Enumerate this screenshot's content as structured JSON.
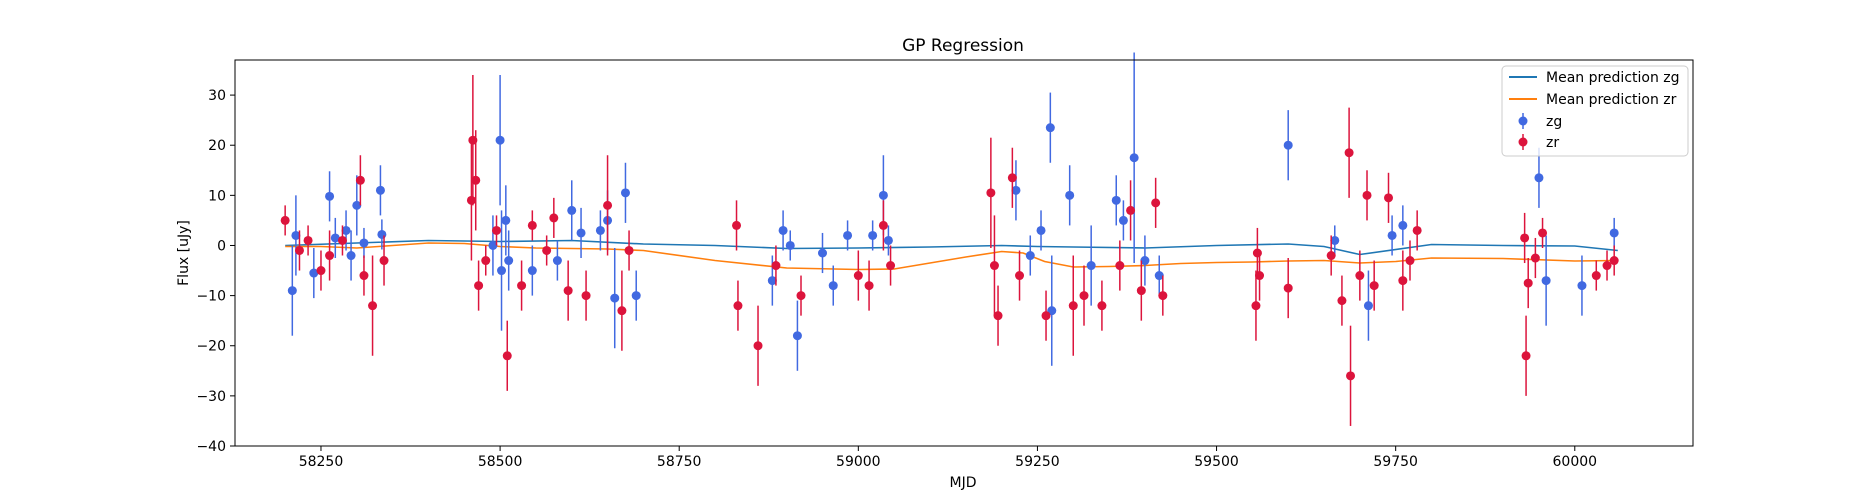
{
  "chart_data": {
    "type": "scatter",
    "title": "GP Regression",
    "xlabel": "MJD",
    "ylabel": "Flux [uJy]",
    "xlim": [
      58130,
      60165
    ],
    "ylim": [
      -40,
      37
    ],
    "xticks": [
      58250,
      58500,
      58750,
      59000,
      59250,
      59500,
      59750,
      60000
    ],
    "yticks": [
      -40,
      -30,
      -20,
      -10,
      0,
      10,
      20,
      30
    ],
    "grid": false,
    "legend_position": "upper right",
    "legend": [
      {
        "label": "Mean prediction zg",
        "kind": "line",
        "color": "#1f77b4"
      },
      {
        "label": "Mean prediction zr",
        "kind": "line",
        "color": "#ff7f0e"
      },
      {
        "label": "zg",
        "kind": "errorbar",
        "color": "#4169e1"
      },
      {
        "label": "zr",
        "kind": "errorbar",
        "color": "#dc143c"
      }
    ],
    "mean_series": [
      {
        "name": "Mean prediction zg",
        "color": "#1f77b4",
        "x": [
          58200,
          58300,
          58400,
          58500,
          58600,
          58700,
          58800,
          58900,
          59000,
          59100,
          59200,
          59250,
          59300,
          59400,
          59500,
          59600,
          59650,
          59700,
          59800,
          59900,
          60000,
          60060
        ],
        "y": [
          0,
          0.5,
          1,
          0.8,
          1,
          0.3,
          0,
          -0.6,
          -0.5,
          -0.3,
          0,
          -0.2,
          -0.3,
          -0.5,
          0,
          0.3,
          -0.2,
          -1.8,
          0.2,
          0,
          -0.1,
          -1
        ]
      },
      {
        "name": "Mean prediction zr",
        "color": "#ff7f0e",
        "x": [
          58200,
          58250,
          58300,
          58350,
          58400,
          58450,
          58500,
          58550,
          58600,
          58650,
          58700,
          58800,
          58900,
          59000,
          59050,
          59100,
          59150,
          59200,
          59230,
          59260,
          59300,
          59350,
          59400,
          59450,
          59500,
          59550,
          59600,
          59650,
          59700,
          59750,
          59800,
          59900,
          60000,
          60060
        ],
        "y": [
          -0.2,
          -0.2,
          -0.5,
          0,
          0.5,
          0.4,
          -0.2,
          -0.5,
          -0.6,
          -0.7,
          -1,
          -3,
          -4.5,
          -4.8,
          -4.7,
          -3.5,
          -2.3,
          -1.2,
          -1.5,
          -3.2,
          -4.3,
          -4.2,
          -4,
          -3.6,
          -3.4,
          -3.3,
          -3.1,
          -3,
          -3.5,
          -3.2,
          -2.5,
          -2.6,
          -3.1,
          -3
        ]
      }
    ],
    "series": [
      {
        "name": "zg",
        "color": "#4169e1",
        "points": [
          {
            "x": 58210,
            "y": -9,
            "err": 9
          },
          {
            "x": 58215,
            "y": 2,
            "err": 8
          },
          {
            "x": 58240,
            "y": -5.5,
            "err": 5
          },
          {
            "x": 58262,
            "y": 9.8,
            "err": 5
          },
          {
            "x": 58270,
            "y": 1.5,
            "err": 4
          },
          {
            "x": 58285,
            "y": 3,
            "err": 4
          },
          {
            "x": 58292,
            "y": -2,
            "err": 5
          },
          {
            "x": 58300,
            "y": 8,
            "err": 6
          },
          {
            "x": 58310,
            "y": 0.5,
            "err": 3
          },
          {
            "x": 58333,
            "y": 11,
            "err": 5
          },
          {
            "x": 58335,
            "y": 2.2,
            "err": 3
          },
          {
            "x": 58490,
            "y": 0,
            "err": 6
          },
          {
            "x": 58500,
            "y": 21,
            "err": 13
          },
          {
            "x": 58502,
            "y": -5,
            "err": 12
          },
          {
            "x": 58508,
            "y": 5,
            "err": 7
          },
          {
            "x": 58512,
            "y": -3,
            "err": 6
          },
          {
            "x": 58545,
            "y": -5,
            "err": 5
          },
          {
            "x": 58580,
            "y": -3,
            "err": 4
          },
          {
            "x": 58600,
            "y": 7,
            "err": 6
          },
          {
            "x": 58613,
            "y": 2.5,
            "err": 5
          },
          {
            "x": 58640,
            "y": 3,
            "err": 4
          },
          {
            "x": 58650,
            "y": 5,
            "err": 6
          },
          {
            "x": 58660,
            "y": -10.5,
            "err": 10
          },
          {
            "x": 58675,
            "y": 10.5,
            "err": 6
          },
          {
            "x": 58690,
            "y": -10,
            "err": 5
          },
          {
            "x": 58880,
            "y": -7,
            "err": 5
          },
          {
            "x": 58895,
            "y": 3,
            "err": 4
          },
          {
            "x": 58905,
            "y": 0,
            "err": 3
          },
          {
            "x": 58915,
            "y": -18,
            "err": 7
          },
          {
            "x": 58950,
            "y": -1.5,
            "err": 4
          },
          {
            "x": 58965,
            "y": -8,
            "err": 4
          },
          {
            "x": 58985,
            "y": 2,
            "err": 3
          },
          {
            "x": 59020,
            "y": 2,
            "err": 3
          },
          {
            "x": 59035,
            "y": 10,
            "err": 8
          },
          {
            "x": 59042,
            "y": 1,
            "err": 3
          },
          {
            "x": 59220,
            "y": 11,
            "err": 6
          },
          {
            "x": 59240,
            "y": -2,
            "err": 4
          },
          {
            "x": 59255,
            "y": 3,
            "err": 4
          },
          {
            "x": 59268,
            "y": 23.5,
            "err": 7
          },
          {
            "x": 59270,
            "y": -13,
            "err": 11
          },
          {
            "x": 59295,
            "y": 10,
            "err": 6
          },
          {
            "x": 59325,
            "y": -4,
            "err": 8
          },
          {
            "x": 59360,
            "y": 9,
            "err": 5
          },
          {
            "x": 59370,
            "y": 5,
            "err": 4
          },
          {
            "x": 59385,
            "y": 17.5,
            "err": 21
          },
          {
            "x": 59400,
            "y": -3,
            "err": 5
          },
          {
            "x": 59420,
            "y": -6,
            "err": 4
          },
          {
            "x": 59600,
            "y": 20,
            "err": 7
          },
          {
            "x": 59665,
            "y": 1,
            "err": 3
          },
          {
            "x": 59712,
            "y": -12,
            "err": 7
          },
          {
            "x": 59745,
            "y": 2,
            "err": 4
          },
          {
            "x": 59760,
            "y": 4,
            "err": 4
          },
          {
            "x": 59950,
            "y": 13.5,
            "err": 6
          },
          {
            "x": 59960,
            "y": -7,
            "err": 9
          },
          {
            "x": 60010,
            "y": -8,
            "err": 6
          },
          {
            "x": 60055,
            "y": 2.5,
            "err": 3
          }
        ]
      },
      {
        "name": "zr",
        "color": "#dc143c",
        "points": [
          {
            "x": 58200,
            "y": 5,
            "err": 3
          },
          {
            "x": 58220,
            "y": -1,
            "err": 4
          },
          {
            "x": 58232,
            "y": 1,
            "err": 3
          },
          {
            "x": 58250,
            "y": -5,
            "err": 4
          },
          {
            "x": 58262,
            "y": -2,
            "err": 5
          },
          {
            "x": 58280,
            "y": 1,
            "err": 3
          },
          {
            "x": 58305,
            "y": 13,
            "err": 5
          },
          {
            "x": 58310,
            "y": -6,
            "err": 4
          },
          {
            "x": 58322,
            "y": -12,
            "err": 10
          },
          {
            "x": 58338,
            "y": -3,
            "err": 5
          },
          {
            "x": 58460,
            "y": 9,
            "err": 12
          },
          {
            "x": 58462,
            "y": 21,
            "err": 13
          },
          {
            "x": 58466,
            "y": 13,
            "err": 10
          },
          {
            "x": 58470,
            "y": -8,
            "err": 5
          },
          {
            "x": 58480,
            "y": -3,
            "err": 3
          },
          {
            "x": 58495,
            "y": 3,
            "err": 3
          },
          {
            "x": 58510,
            "y": -22,
            "err": 7
          },
          {
            "x": 58530,
            "y": -8,
            "err": 5
          },
          {
            "x": 58545,
            "y": 4,
            "err": 3
          },
          {
            "x": 58565,
            "y": -1,
            "err": 3
          },
          {
            "x": 58575,
            "y": 5.5,
            "err": 4
          },
          {
            "x": 58595,
            "y": -9,
            "err": 6
          },
          {
            "x": 58620,
            "y": -10,
            "err": 5
          },
          {
            "x": 58650,
            "y": 8,
            "err": 10
          },
          {
            "x": 58670,
            "y": -13,
            "err": 8
          },
          {
            "x": 58680,
            "y": -1,
            "err": 4
          },
          {
            "x": 58830,
            "y": 4,
            "err": 5
          },
          {
            "x": 58832,
            "y": -12,
            "err": 5
          },
          {
            "x": 58860,
            "y": -20,
            "err": 8
          },
          {
            "x": 58885,
            "y": -4,
            "err": 4
          },
          {
            "x": 58920,
            "y": -10,
            "err": 4
          },
          {
            "x": 59000,
            "y": -6,
            "err": 5
          },
          {
            "x": 59015,
            "y": -8,
            "err": 5
          },
          {
            "x": 59035,
            "y": 4,
            "err": 5
          },
          {
            "x": 59045,
            "y": -4,
            "err": 4
          },
          {
            "x": 59185,
            "y": 10.5,
            "err": 11
          },
          {
            "x": 59190,
            "y": -4,
            "err": 10
          },
          {
            "x": 59195,
            "y": -14,
            "err": 6
          },
          {
            "x": 59215,
            "y": 13.5,
            "err": 6
          },
          {
            "x": 59225,
            "y": -6,
            "err": 5
          },
          {
            "x": 59262,
            "y": -14,
            "err": 5
          },
          {
            "x": 59300,
            "y": -12,
            "err": 10
          },
          {
            "x": 59315,
            "y": -10,
            "err": 6
          },
          {
            "x": 59340,
            "y": -12,
            "err": 5
          },
          {
            "x": 59365,
            "y": -4,
            "err": 5
          },
          {
            "x": 59380,
            "y": 7,
            "err": 6
          },
          {
            "x": 59395,
            "y": -9,
            "err": 6
          },
          {
            "x": 59415,
            "y": 8.5,
            "err": 5
          },
          {
            "x": 59425,
            "y": -10,
            "err": 4
          },
          {
            "x": 59555,
            "y": -12,
            "err": 7
          },
          {
            "x": 59557,
            "y": -1.5,
            "err": 5
          },
          {
            "x": 59560,
            "y": -6,
            "err": 5
          },
          {
            "x": 59600,
            "y": -8.5,
            "err": 6
          },
          {
            "x": 59660,
            "y": -2,
            "err": 4
          },
          {
            "x": 59675,
            "y": -11,
            "err": 5
          },
          {
            "x": 59685,
            "y": 18.5,
            "err": 9
          },
          {
            "x": 59687,
            "y": -26,
            "err": 10
          },
          {
            "x": 59700,
            "y": -6,
            "err": 5
          },
          {
            "x": 59710,
            "y": 10,
            "err": 5
          },
          {
            "x": 59720,
            "y": -8,
            "err": 5
          },
          {
            "x": 59740,
            "y": 9.5,
            "err": 5
          },
          {
            "x": 59760,
            "y": -7,
            "err": 6
          },
          {
            "x": 59770,
            "y": -3,
            "err": 4
          },
          {
            "x": 59780,
            "y": 3,
            "err": 4
          },
          {
            "x": 59930,
            "y": 1.5,
            "err": 5
          },
          {
            "x": 59932,
            "y": -22,
            "err": 8
          },
          {
            "x": 59935,
            "y": -7.5,
            "err": 5
          },
          {
            "x": 59945,
            "y": -2.5,
            "err": 4
          },
          {
            "x": 59955,
            "y": 2.5,
            "err": 3
          },
          {
            "x": 60030,
            "y": -6,
            "err": 3
          },
          {
            "x": 60045,
            "y": -4,
            "err": 3
          },
          {
            "x": 60055,
            "y": -3,
            "err": 3
          }
        ]
      }
    ]
  }
}
